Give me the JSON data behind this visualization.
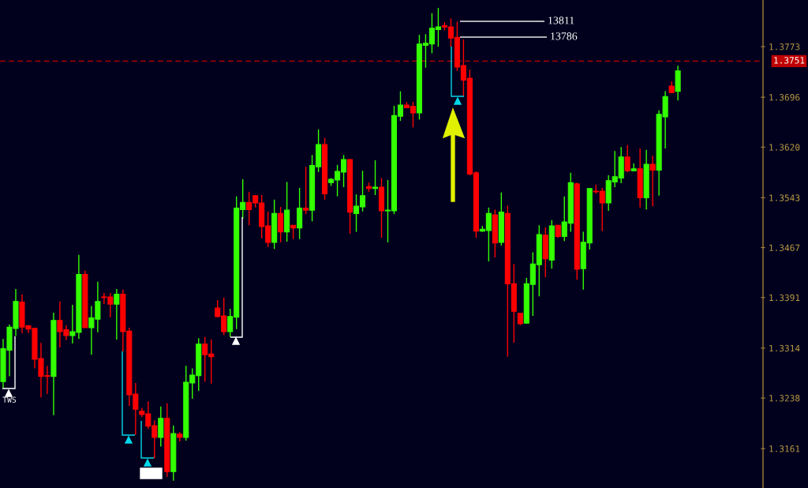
{
  "chart_data": {
    "type": "candlestick",
    "categories": [
      null,
      null,
      null,
      null,
      null,
      null,
      null,
      null,
      null,
      null,
      null,
      null,
      null,
      null,
      null,
      null,
      null,
      null,
      null,
      null,
      null,
      null,
      null,
      null,
      null,
      null,
      null,
      null,
      null,
      null,
      null,
      null,
      null,
      null,
      null,
      null,
      null,
      null,
      null,
      null,
      null,
      null,
      null,
      null,
      null,
      null,
      null,
      null,
      null,
      null,
      null,
      null,
      null,
      null,
      null,
      null,
      null,
      null,
      null,
      null,
      null,
      null,
      null,
      null,
      null,
      null,
      null,
      null,
      null,
      null,
      null,
      null,
      null,
      null,
      null,
      null,
      null,
      null,
      null,
      null,
      null,
      null,
      null,
      null,
      null,
      null,
      null,
      null,
      null,
      null,
      null,
      null,
      null,
      null,
      null,
      null,
      null,
      null,
      null,
      null,
      null,
      null,
      null,
      null,
      null,
      null,
      null,
      null,
      null,
      null,
      null,
      null,
      null,
      null,
      null,
      null,
      null,
      null,
      null,
      null,
      null
    ],
    "ohlc": [
      [
        1.3263,
        1.3328,
        1.3253,
        1.3313
      ],
      [
        1.3311,
        1.335,
        1.3271,
        1.3346
      ],
      [
        1.3344,
        1.3404,
        1.3332,
        1.3385
      ],
      [
        1.3384,
        1.3396,
        1.3337,
        1.3346
      ],
      [
        1.3348,
        1.3349,
        1.3337,
        1.3343
      ],
      [
        1.3344,
        1.3345,
        1.3283,
        1.3297
      ],
      [
        1.3298,
        1.3322,
        1.3239,
        1.3271
      ],
      [
        1.3272,
        1.3287,
        1.3244,
        1.3271
      ],
      [
        1.3271,
        1.3368,
        1.3212,
        1.3356
      ],
      [
        1.3356,
        1.3385,
        1.3315,
        1.3339
      ],
      [
        1.3342,
        1.3349,
        1.3326,
        1.3333
      ],
      [
        1.3333,
        1.338,
        1.3321,
        1.3339
      ],
      [
        1.3338,
        1.3456,
        1.3328,
        1.3426
      ],
      [
        1.3426,
        1.3432,
        1.3345,
        1.3345
      ],
      [
        1.3345,
        1.3378,
        1.3304,
        1.336
      ],
      [
        1.3358,
        1.3415,
        1.3338,
        1.3385
      ],
      [
        1.3392,
        1.3398,
        1.3381,
        1.3391
      ],
      [
        1.3392,
        1.3398,
        1.3361,
        1.3381
      ],
      [
        1.3381,
        1.3404,
        1.3327,
        1.3396
      ],
      [
        1.3396,
        1.3403,
        1.3309,
        1.3339
      ],
      [
        1.334,
        1.3345,
        1.3226,
        1.3243
      ],
      [
        1.3244,
        1.3261,
        1.3182,
        1.3221
      ],
      [
        1.3218,
        1.3223,
        1.3209,
        1.3213
      ],
      [
        1.3214,
        1.3233,
        1.3191,
        1.3195
      ],
      [
        1.3196,
        1.3204,
        1.3146,
        1.3178
      ],
      [
        1.3178,
        1.3225,
        1.3164,
        1.3207
      ],
      [
        1.3207,
        1.323,
        1.3118,
        1.3126
      ],
      [
        1.3126,
        1.3196,
        1.3112,
        1.3184
      ],
      [
        1.3183,
        1.3186,
        1.3172,
        1.3178
      ],
      [
        1.3178,
        1.3287,
        1.3173,
        1.3262
      ],
      [
        1.3261,
        1.3283,
        1.3237,
        1.3273
      ],
      [
        1.3272,
        1.3329,
        1.3249,
        1.332
      ],
      [
        1.332,
        1.3331,
        1.3263,
        1.3304
      ],
      [
        1.3305,
        1.3327,
        1.326,
        1.3301
      ],
      [
        1.3375,
        1.3387,
        1.3361,
        1.3362
      ],
      [
        1.3363,
        1.3391,
        1.3334,
        1.3339
      ],
      [
        1.3339,
        1.3374,
        1.3331,
        1.3362
      ],
      [
        1.3361,
        1.3545,
        1.3343,
        1.3527
      ],
      [
        1.3525,
        1.3571,
        1.3511,
        1.3536
      ],
      [
        1.3536,
        1.3552,
        1.3501,
        1.3525
      ],
      [
        1.3546,
        1.3547,
        1.3528,
        1.3535
      ],
      [
        1.3535,
        1.3547,
        1.3481,
        1.3499
      ],
      [
        1.35,
        1.3522,
        1.3468,
        1.3475
      ],
      [
        1.3475,
        1.354,
        1.3465,
        1.3519
      ],
      [
        1.3519,
        1.3529,
        1.3475,
        1.3491
      ],
      [
        1.3491,
        1.3567,
        1.3476,
        1.3524
      ],
      [
        1.3501,
        1.3501,
        1.348,
        1.3497
      ],
      [
        1.3497,
        1.3558,
        1.348,
        1.3527
      ],
      [
        1.3527,
        1.359,
        1.3518,
        1.3524
      ],
      [
        1.3524,
        1.3608,
        1.3507,
        1.3592
      ],
      [
        1.359,
        1.3647,
        1.3582,
        1.3624
      ],
      [
        1.3624,
        1.3634,
        1.354,
        1.3549
      ],
      [
        1.3566,
        1.3573,
        1.3561,
        1.3571
      ],
      [
        1.357,
        1.3593,
        1.3545,
        1.3583
      ],
      [
        1.3582,
        1.3608,
        1.3559,
        1.3601
      ],
      [
        1.3601,
        1.3602,
        1.3488,
        1.3521
      ],
      [
        1.3519,
        1.3548,
        1.3491,
        1.353
      ],
      [
        1.3529,
        1.3584,
        1.3522,
        1.3546
      ],
      [
        1.356,
        1.3566,
        1.3552,
        1.3557
      ],
      [
        1.3557,
        1.36,
        1.3547,
        1.3559
      ],
      [
        1.3559,
        1.3573,
        1.3482,
        1.3523
      ],
      [
        1.3523,
        1.357,
        1.3475,
        1.3524
      ],
      [
        1.3523,
        1.3683,
        1.3518,
        1.3668
      ],
      [
        1.3667,
        1.3705,
        1.366,
        1.3684
      ],
      [
        1.3684,
        1.3689,
        1.368,
        1.368
      ],
      [
        1.3682,
        1.3689,
        1.365,
        1.3672
      ],
      [
        1.3672,
        1.3791,
        1.3662,
        1.3777
      ],
      [
        1.3775,
        1.3792,
        1.3741,
        1.3778
      ],
      [
        1.3777,
        1.3824,
        1.3763,
        1.3801
      ],
      [
        1.3799,
        1.3832,
        1.3773,
        1.3803
      ],
      [
        1.3805,
        1.381,
        1.3798,
        1.3803
      ],
      [
        1.3803,
        1.3816,
        1.3773,
        1.3786
      ],
      [
        1.3787,
        1.3811,
        1.3736,
        1.3742
      ],
      [
        1.3744,
        1.3784,
        1.3697,
        1.3722
      ],
      [
        1.3725,
        1.3738,
        1.3577,
        1.3579
      ],
      [
        1.3581,
        1.3583,
        1.3482,
        1.3492
      ],
      [
        1.3492,
        1.35,
        1.3491,
        1.3495
      ],
      [
        1.3493,
        1.3528,
        1.3446,
        1.3519
      ],
      [
        1.3517,
        1.3525,
        1.3452,
        1.3474
      ],
      [
        1.3475,
        1.3551,
        1.347,
        1.3521
      ],
      [
        1.3519,
        1.3531,
        1.3301,
        1.3412
      ],
      [
        1.3412,
        1.3442,
        1.3322,
        1.337
      ],
      [
        1.3367,
        1.3367,
        1.3349,
        1.3351
      ],
      [
        1.3352,
        1.3421,
        1.3351,
        1.3412
      ],
      [
        1.3411,
        1.346,
        1.3363,
        1.3442
      ],
      [
        1.3441,
        1.3501,
        1.3393,
        1.3487
      ],
      [
        1.3486,
        1.3498,
        1.3422,
        1.345
      ],
      [
        1.3448,
        1.3509,
        1.3435,
        1.35
      ],
      [
        1.3501,
        1.3501,
        1.3482,
        1.3484
      ],
      [
        1.3484,
        1.3545,
        1.3477,
        1.3506
      ],
      [
        1.3504,
        1.3581,
        1.3491,
        1.3566
      ],
      [
        1.3564,
        1.3566,
        1.3418,
        1.3434
      ],
      [
        1.3435,
        1.3491,
        1.3403,
        1.3475
      ],
      [
        1.3474,
        1.3557,
        1.3464,
        1.3557
      ],
      [
        1.3553,
        1.3563,
        1.3549,
        1.3552
      ],
      [
        1.3553,
        1.3558,
        1.3492,
        1.3535
      ],
      [
        1.3535,
        1.3577,
        1.3523,
        1.3569
      ],
      [
        1.3567,
        1.3614,
        1.3559,
        1.3575
      ],
      [
        1.3573,
        1.362,
        1.3565,
        1.3605
      ],
      [
        1.3605,
        1.3623,
        1.3582,
        1.3584
      ],
      [
        1.3584,
        1.3595,
        1.3583,
        1.3587
      ],
      [
        1.3587,
        1.3618,
        1.3528,
        1.3543
      ],
      [
        1.3543,
        1.3616,
        1.3525,
        1.3594
      ],
      [
        1.3594,
        1.3607,
        1.353,
        1.3585
      ],
      [
        1.3585,
        1.3676,
        1.3546,
        1.367
      ],
      [
        1.3666,
        1.3705,
        1.3618,
        1.3697
      ],
      [
        1.3713,
        1.372,
        1.3702,
        1.3703
      ],
      [
        1.3705,
        1.3744,
        1.3691,
        1.3736
      ],
      null,
      null,
      null,
      null,
      null,
      null,
      null,
      null,
      null,
      null,
      null,
      null,
      null
    ],
    "colors": [
      "#33ff00",
      "#33ff00",
      "#33ff00",
      "#ff0000",
      "#ff0000",
      "#ff0000",
      "#ff0000",
      "#ff0000",
      "#33ff00",
      "#ff0000",
      "#ff0000",
      "#33ff00",
      "#33ff00",
      "#ff0000",
      "#33ff00",
      "#33ff00",
      "#ff0000",
      "#ff0000",
      "#33ff00",
      "#ff0000",
      "#ff0000",
      "#ff0000",
      "#ff0000",
      "#ff0000",
      "#ff0000",
      "#33ff00",
      "#ff0000",
      "#33ff00",
      "#ff0000",
      "#33ff00",
      "#33ff00",
      "#33ff00",
      "#ff0000",
      "#ff0000",
      "#ff0000",
      "#ff0000",
      "#33ff00",
      "#33ff00",
      "#33ff00",
      "#ff0000",
      "#ff0000",
      "#ff0000",
      "#ff0000",
      "#33ff00",
      "#ff0000",
      "#33ff00",
      "#ff0000",
      "#33ff00",
      "#ff0000",
      "#33ff00",
      "#33ff00",
      "#ff0000",
      "#33ff00",
      "#33ff00",
      "#33ff00",
      "#ff0000",
      "#33ff00",
      "#33ff00",
      "#ff0000",
      "#33ff00",
      "#ff0000",
      "#33ff00",
      "#33ff00",
      "#33ff00",
      "#ff0000",
      "#ff0000",
      "#33ff00",
      "#33ff00",
      "#33ff00",
      "#33ff00",
      "#ff0000",
      "#ff0000",
      "#ff0000",
      "#ff0000",
      "#ff0000",
      "#ff0000",
      "#33ff00",
      "#33ff00",
      "#ff0000",
      "#33ff00",
      "#ff0000",
      "#ff0000",
      "#ff0000",
      "#33ff00",
      "#33ff00",
      "#33ff00",
      "#ff0000",
      "#33ff00",
      "#ff0000",
      "#33ff00",
      "#33ff00",
      "#ff0000",
      "#33ff00",
      "#33ff00",
      "#ff0000",
      "#ff0000",
      "#33ff00",
      "#33ff00",
      "#33ff00",
      "#ff0000",
      "#33ff00",
      "#ff0000",
      "#33ff00",
      "#ff0000",
      "#33ff00",
      "#33ff00",
      "#ff0000",
      "#33ff00",
      null,
      null,
      null,
      null,
      null,
      null,
      null,
      null,
      null,
      null,
      null,
      null,
      null
    ],
    "ylim": [
      1.3101,
      1.3844
    ],
    "yticks": [
      1.3773,
      1.3696,
      {
        "value": 1.362,
        "label": "1.3620"
      },
      1.3543,
      1.3467,
      1.3391,
      1.3314,
      1.3238,
      1.3161
    ],
    "tick_labels": "y",
    "ref_lines": [
      {
        "axis": "y",
        "value": 1.3751,
        "label": "1.3751",
        "color": "#c00000",
        "line_style": "dashed"
      }
    ],
    "annotations": [
      "TWS",
      "13811",
      "13786"
    ]
  }
}
